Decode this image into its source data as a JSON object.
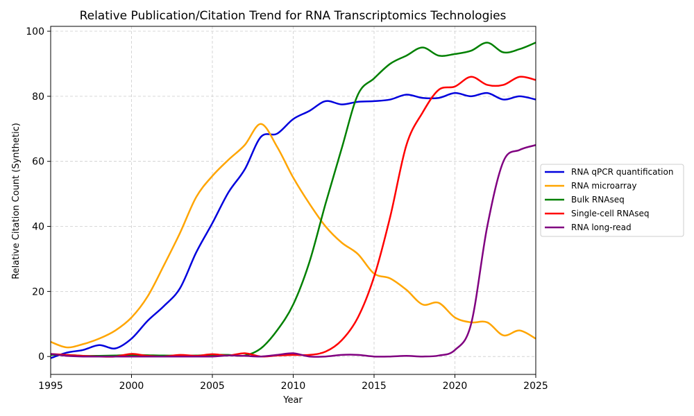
{
  "chart_data": {
    "type": "line",
    "title": "Relative Publication/Citation Trend for RNA Transcriptomics Technologies",
    "xlabel": "Year",
    "ylabel": "Relative Citation Count (Synthetic)",
    "xlim": [
      1995,
      2025
    ],
    "ylim": [
      -5.5,
      101.5
    ],
    "xticks": [
      1995,
      2000,
      2005,
      2010,
      2015,
      2020,
      2025
    ],
    "yticks": [
      0,
      20,
      40,
      60,
      80,
      100
    ],
    "grid": true,
    "legend_position": "center-right-outside",
    "x": [
      1995,
      1996,
      1997,
      1998,
      1999,
      2000,
      2001,
      2002,
      2003,
      2004,
      2005,
      2006,
      2007,
      2008,
      2009,
      2010,
      2011,
      2012,
      2013,
      2014,
      2015,
      2016,
      2017,
      2018,
      2019,
      2020,
      2021,
      2022,
      2023,
      2024,
      2025
    ],
    "series": [
      {
        "name": "RNA qPCR quantification",
        "color": "#0000dd",
        "values": [
          -0.5,
          1.2,
          2.0,
          3.5,
          2.5,
          5.5,
          11.0,
          15.5,
          21.0,
          32.0,
          41.0,
          50.5,
          57.5,
          67.5,
          68.5,
          73.0,
          75.5,
          78.5,
          77.5,
          78.3,
          78.5,
          79.0,
          80.5,
          79.5,
          79.5,
          81.0,
          80.0,
          81.0,
          79.0,
          80.0,
          79.0
        ]
      },
      {
        "name": "RNA microarray",
        "color": "#ffa500",
        "values": [
          4.5,
          2.8,
          3.8,
          5.5,
          8.0,
          12.0,
          18.5,
          28.0,
          38.0,
          49.0,
          55.5,
          60.5,
          65.0,
          71.5,
          64.5,
          55.0,
          47.0,
          40.0,
          35.0,
          31.5,
          25.5,
          24.0,
          20.5,
          16.0,
          16.5,
          12.0,
          10.5,
          10.5,
          6.5,
          8.0,
          5.5
        ]
      },
      {
        "name": "Bulk RNAseq",
        "color": "#008000",
        "values": [
          0.5,
          0.5,
          0.2,
          0.2,
          0.3,
          0.5,
          0.4,
          0.3,
          0.3,
          0.3,
          0.5,
          0.5,
          0.3,
          2.5,
          8.0,
          16.0,
          29.0,
          47.0,
          64.0,
          80.5,
          85.5,
          90.0,
          92.5,
          95.0,
          92.5,
          93.0,
          94.0,
          96.5,
          93.5,
          94.5,
          96.5
        ]
      },
      {
        "name": "Single-cell RNAseq",
        "color": "#ff0000",
        "values": [
          0.8,
          0.5,
          0.2,
          0.0,
          0.0,
          0.8,
          0.2,
          0.0,
          0.5,
          0.2,
          0.7,
          0.3,
          1.0,
          0.0,
          0.3,
          0.5,
          0.5,
          1.5,
          5.0,
          12.0,
          24.5,
          43.0,
          65.0,
          75.0,
          82.0,
          83.0,
          86.0,
          83.5,
          83.5,
          86.0,
          85.0
        ]
      },
      {
        "name": "RNA long-read",
        "color": "#800080",
        "values": [
          0.8,
          0.2,
          0.0,
          0.0,
          0.0,
          0.0,
          0.0,
          0.0,
          0.0,
          0.0,
          0.0,
          0.3,
          0.2,
          0.0,
          0.5,
          1.0,
          0.0,
          0.0,
          0.5,
          0.5,
          0.0,
          0.0,
          0.2,
          0.0,
          0.3,
          2.0,
          10.0,
          40.0,
          60.0,
          63.5,
          65.0
        ]
      }
    ]
  }
}
